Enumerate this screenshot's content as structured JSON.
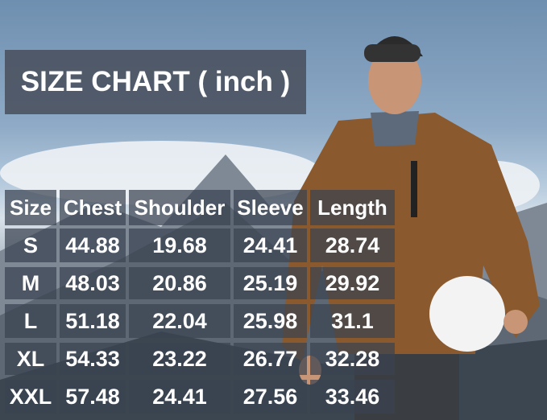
{
  "title": "SIZE CHART ( inch )",
  "table": {
    "headers": [
      "Size",
      "Chest",
      "Shoulder",
      "Sleeve",
      "Length"
    ],
    "rows": [
      [
        "S",
        "44.88",
        "19.68",
        "24.41",
        "28.74"
      ],
      [
        "M",
        "48.03",
        "20.86",
        "25.19",
        "29.92"
      ],
      [
        "L",
        "51.18",
        "22.04",
        "25.98",
        "31.1"
      ],
      [
        "XL",
        "54.33",
        "23.22",
        "26.77",
        "32.28"
      ],
      [
        "XXL",
        "57.48",
        "24.41",
        "27.56",
        "33.46"
      ]
    ]
  },
  "colors": {
    "jacket": "#8a5a2e",
    "panel": "#3a4250"
  }
}
